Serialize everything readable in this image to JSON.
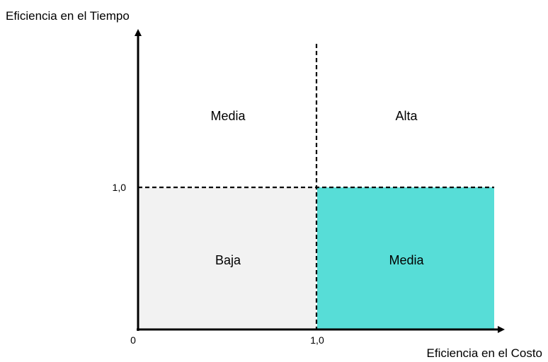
{
  "axes": {
    "y_label": "Eficiencia en el Tiempo",
    "x_label": "Eficiencia en el Costo",
    "origin_label": "0",
    "x_threshold_label": "1,0",
    "y_threshold_label": "1,0"
  },
  "quadrants": {
    "top_left": "Media",
    "top_right": "Alta",
    "bottom_left": "Baja",
    "bottom_right": "Media"
  },
  "colors": {
    "bottom_left_fill": "#f2f2f2",
    "bottom_right_fill": "#57ddd7",
    "axis": "#000000"
  }
}
